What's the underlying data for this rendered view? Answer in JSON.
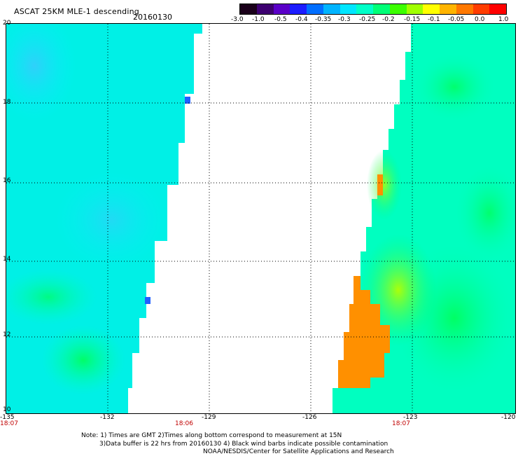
{
  "header": {
    "title": "ASCAT 25KM MLE-1 descending",
    "date": "20160130"
  },
  "colorbar": {
    "labels": [
      "-3.0",
      "-1.0",
      "-0.5",
      "-0.4",
      "-0.35",
      "-0.3",
      "-0.25",
      "-0.2",
      "-0.15",
      "-0.1",
      "-0.05",
      "0.0",
      "1.0"
    ],
    "colors": [
      "#1a001a",
      "#3d0070",
      "#5a00c8",
      "#1c1cff",
      "#006eff",
      "#00b4ff",
      "#00e6ff",
      "#00ffc8",
      "#00ff78",
      "#3cff00",
      "#a0ff00",
      "#ffff00",
      "#ffb400",
      "#ff7800",
      "#ff3c00",
      "#ff0000"
    ]
  },
  "map": {
    "y_axis_labels": [
      "20",
      "18",
      "16",
      "14",
      "12",
      "10"
    ],
    "x_axis_labels": [
      "-135",
      "-132",
      "-129",
      "-126",
      "-123",
      "-120"
    ],
    "swath_times": [
      "18:07",
      "18:06",
      "18:07"
    ],
    "swath_color": "#00ffcc",
    "anomaly_color": "#ff9000",
    "grid": "dotted"
  },
  "notes": {
    "line1": "Note: 1) Times are GMT 2)Times along bottom correspond to measurement at 15N",
    "line2": "3)Data buffer is 22 hrs from 20160130 4) Black wind barbs indicate possible contamination",
    "line3": "NOAA/NESDIS/Center for Satellite Applications and Research"
  }
}
